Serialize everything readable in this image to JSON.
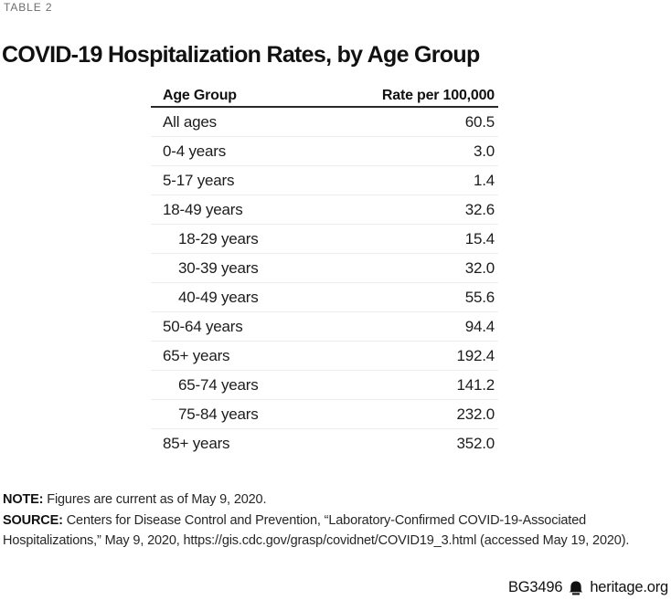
{
  "kicker": "TABLE 2",
  "title": "COVID-19 Hospitalization Rates, by Age Group",
  "chart_data": {
    "type": "table",
    "title": "COVID-19 Hospitalization Rates, by Age Group",
    "columns": [
      "Age Group",
      "Rate per 100,000"
    ],
    "rows": [
      {
        "label": "All ages",
        "value": 60.5,
        "display": "60.5",
        "indent": false
      },
      {
        "label": "0-4 years",
        "value": 3.0,
        "display": "3.0",
        "indent": false
      },
      {
        "label": "5-17 years",
        "value": 1.4,
        "display": "1.4",
        "indent": false
      },
      {
        "label": "18-49 years",
        "value": 32.6,
        "display": "32.6",
        "indent": false
      },
      {
        "label": "18-29 years",
        "value": 15.4,
        "display": "15.4",
        "indent": true
      },
      {
        "label": "30-39 years",
        "value": 32.0,
        "display": "32.0",
        "indent": true
      },
      {
        "label": "40-49 years",
        "value": 55.6,
        "display": "55.6",
        "indent": true
      },
      {
        "label": "50-64 years",
        "value": 94.4,
        "display": "94.4",
        "indent": false
      },
      {
        "label": "65+ years",
        "value": 192.4,
        "display": "192.4",
        "indent": false
      },
      {
        "label": "65-74 years",
        "value": 141.2,
        "display": "141.2",
        "indent": true
      },
      {
        "label": "75-84 years",
        "value": 232.0,
        "display": "232.0",
        "indent": true
      },
      {
        "label": "85+ years",
        "value": 352.0,
        "display": "352.0",
        "indent": false
      }
    ]
  },
  "notes": {
    "note_label": "NOTE:",
    "note_text": " Figures are current as of May 9, 2020.",
    "source_label": "SOURCE:",
    "source_text": " Centers for Disease Control and Prevention, “Laboratory-Confirmed COVID-19-Associated Hospitalizations,” May 9, 2020, https://gis.cdc.gov/grasp/covidnet/COVID19_3.html (accessed May 19, 2020)."
  },
  "footer": {
    "report_id": "BG3496",
    "site": "heritage.org",
    "bell_icon_color": "#111111"
  }
}
